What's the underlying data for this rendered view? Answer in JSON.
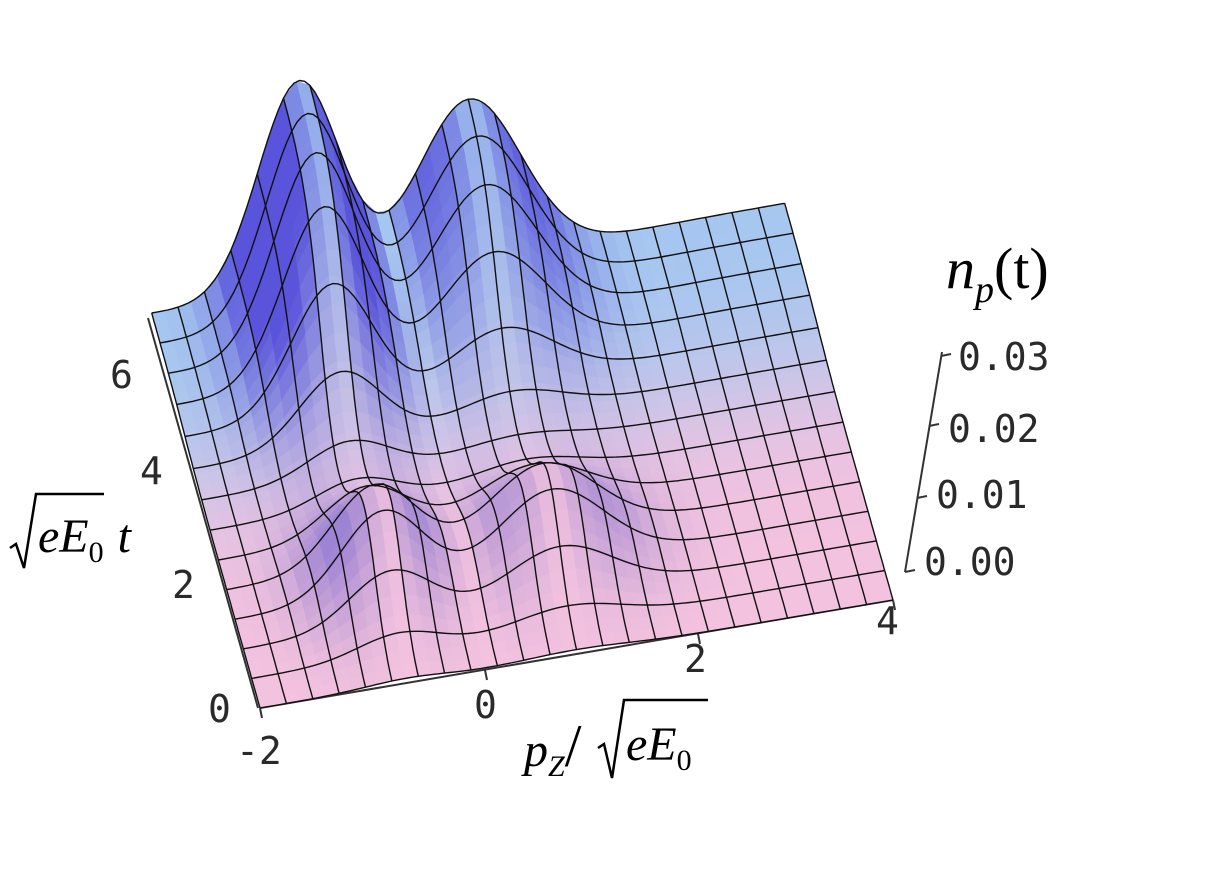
{
  "chart_data": {
    "type": "surface",
    "title": "",
    "xlabel": {
      "base": "p",
      "sub": "Z",
      "sep": "/",
      "radicand": "eE",
      "radicand_sub": "0"
    },
    "ylabel": {
      "radicand": "eE",
      "radicand_sub": "0",
      "suffix": "t"
    },
    "zlabel": {
      "base": "n",
      "sub": "p",
      "suffix": "(t)"
    },
    "x_ticks": [
      "-2",
      "0",
      "2",
      "4"
    ],
    "y_ticks": [
      "0",
      "2",
      "4",
      "6"
    ],
    "z_ticks": [
      "0.00",
      "0.01",
      "0.02",
      "0.03"
    ],
    "xlim": [
      -2,
      4
    ],
    "ylim": [
      0,
      6.5
    ],
    "zlim": [
      0,
      0.03
    ],
    "peaks": [
      {
        "p_center": -0.6,
        "width": 0.55,
        "t_asymptote_value": 0.03,
        "t_rise": 4.3,
        "transient_amplitude": 0.012
      },
      {
        "p_center": 1.0,
        "width": 0.7,
        "t_asymptote_value": 0.024,
        "t_rise": 4.8,
        "transient_amplitude": 0.011
      }
    ],
    "colors": {
      "low": "#f3c2df",
      "mid": "#f6d3b9",
      "high": "#4b3fd8",
      "plateau": "#9cc8f2"
    }
  }
}
